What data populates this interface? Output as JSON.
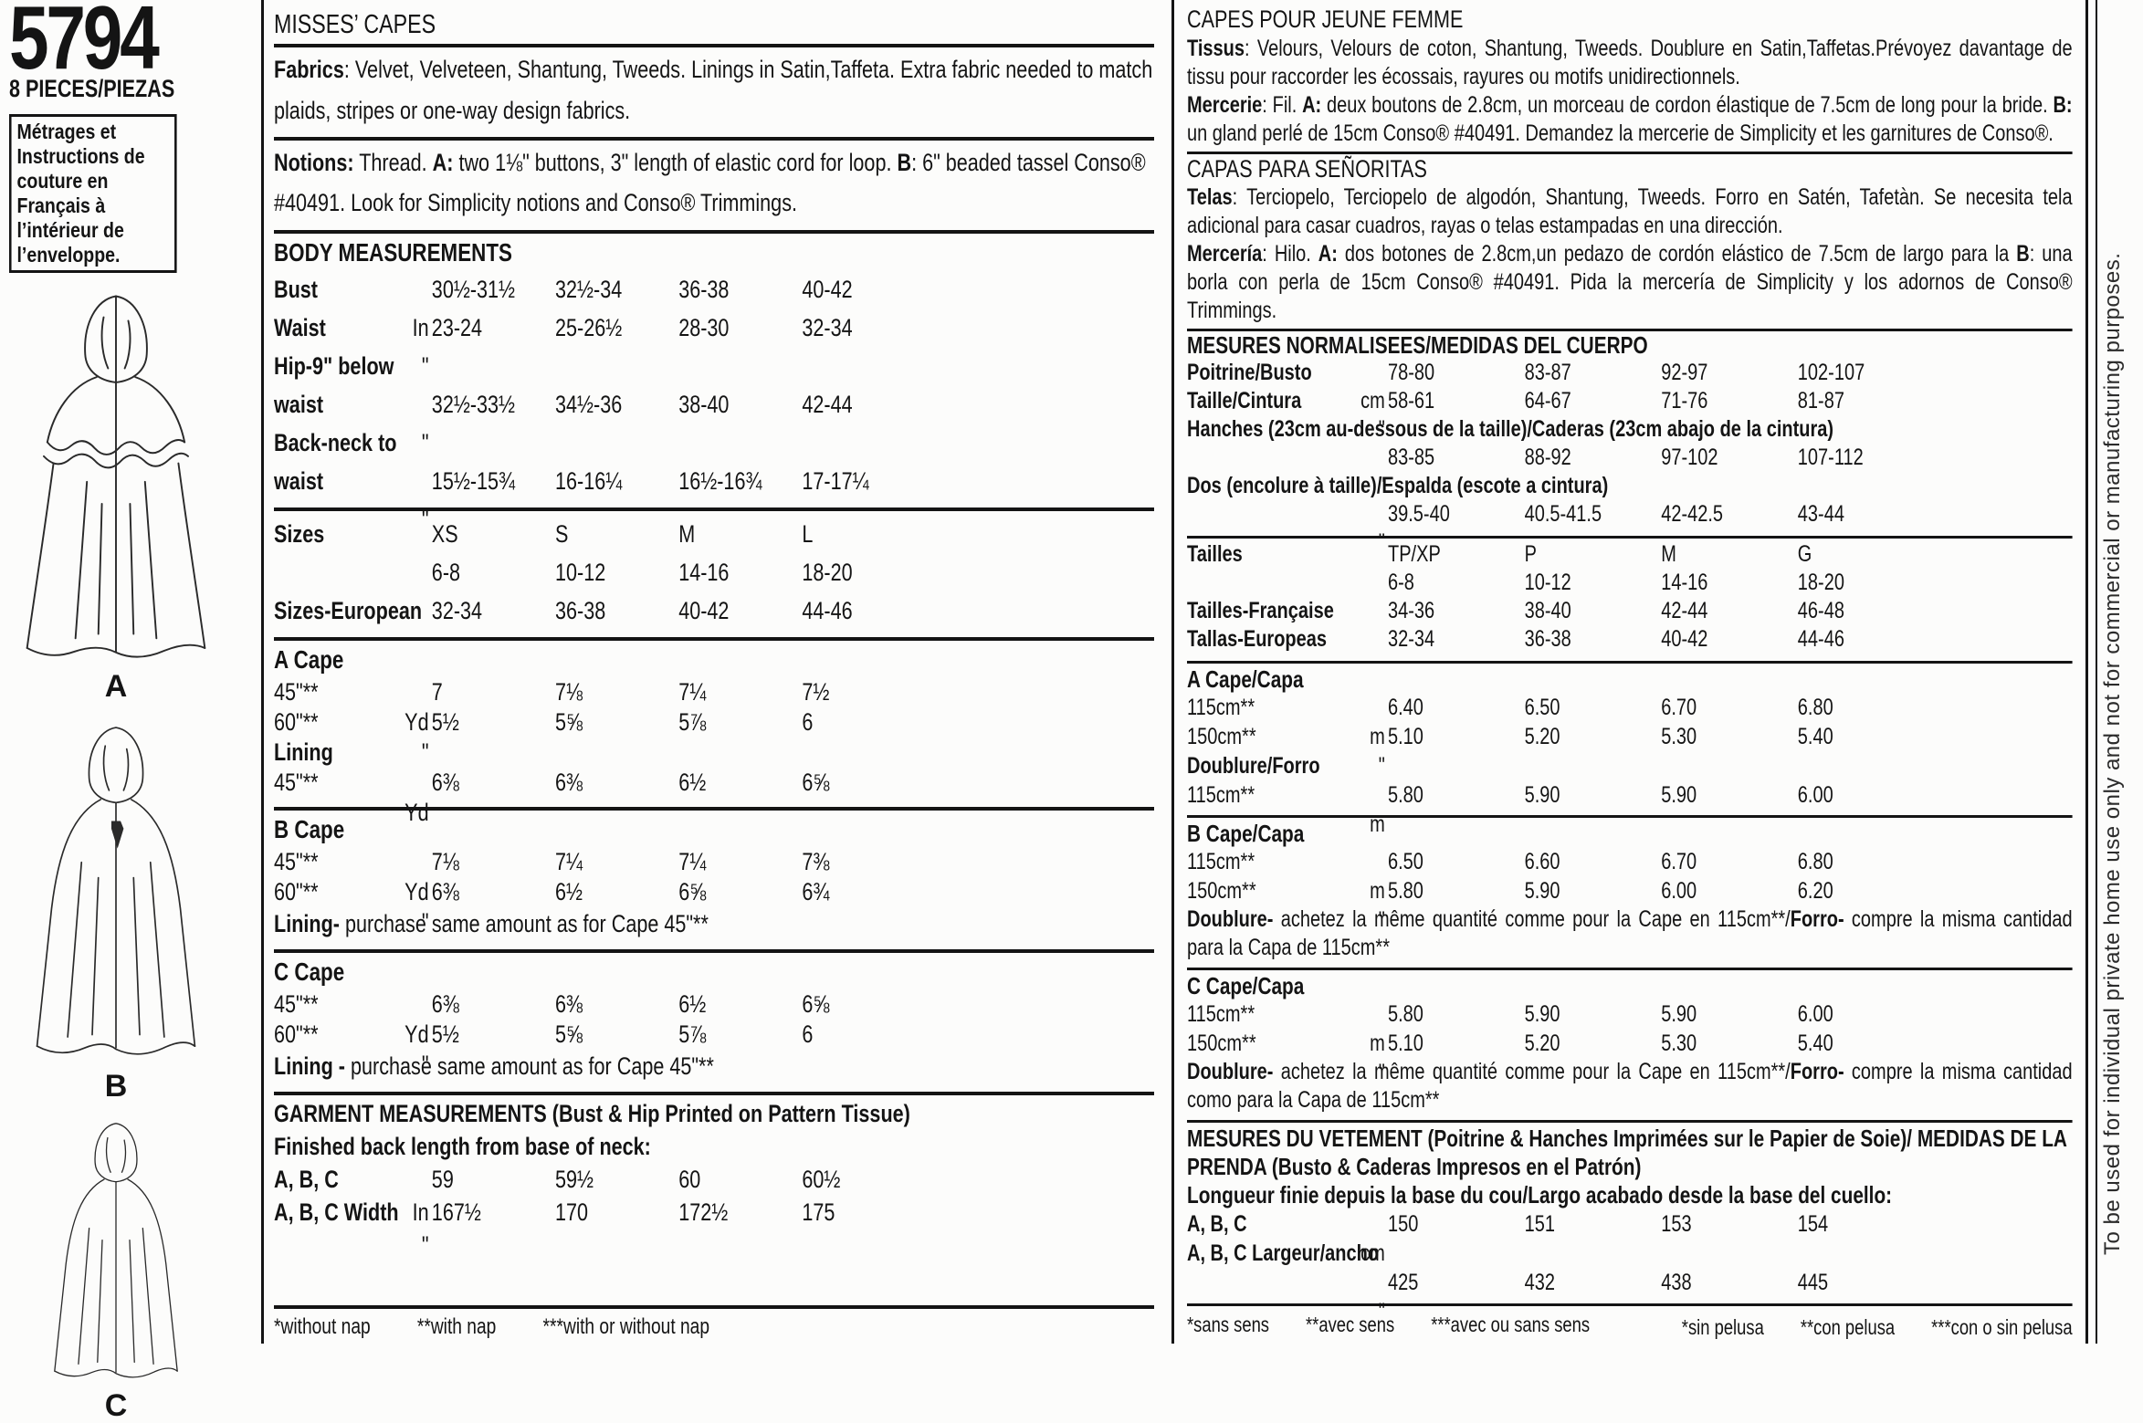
{
  "sidebar": {
    "pattern_number": "5794",
    "pieces": "8 PIECES/PIEZAS",
    "french_note": "Métrages et Instructions de couture en Français à l’intérieur de l’enveloppe.",
    "views": [
      "A",
      "B",
      "C"
    ]
  },
  "english": {
    "title": "MISSES’ CAPES",
    "fabrics": [
      {
        "b": "Fabrics"
      },
      {
        "t": ": Velvet, Velveteen, Shantung, Tweeds. Linings in Satin,Taffeta. Extra fabric needed to match plaids, stripes or one-way design fabrics."
      }
    ],
    "notions": [
      {
        "b": "Notions:"
      },
      {
        "t": " Thread. "
      },
      {
        "b": "A:"
      },
      {
        "t": " two 1⅛\" buttons, 3\" length of elastic cord for loop. "
      },
      {
        "b": "B"
      },
      {
        "t": ": 6\" beaded tassel Conso® #40491. Look for Simplicity notions and Conso® Trimmings."
      }
    ],
    "body_measurements": {
      "title": "BODY MEASUREMENTS",
      "rows": [
        {
          "label": "Bust",
          "bold": true,
          "values": [
            "30½-31½",
            "32½-34",
            "36-38",
            "40-42"
          ],
          "unit": "In"
        },
        {
          "label": "Waist",
          "bold": true,
          "values": [
            "23-24",
            "25-26½",
            "28-30",
            "32-34"
          ],
          "unit": "\""
        },
        {
          "label": "Hip-9\" below waist",
          "bold": true,
          "values": [
            "",
            "",
            "",
            ""
          ],
          "unit": ""
        },
        {
          "label": "",
          "values": [
            "32½-33½",
            "34½-36",
            "38-40",
            "42-44"
          ],
          "unit": "\""
        },
        {
          "label": "Back-neck to waist",
          "bold": true,
          "values": [
            "",
            "",
            "",
            ""
          ],
          "unit": ""
        },
        {
          "label": "",
          "values": [
            "15½-15¾",
            "16-16¼",
            "16½-16¾",
            "17-17¼"
          ],
          "unit": "\""
        }
      ]
    },
    "sizes": {
      "rows": [
        {
          "label": "Sizes",
          "bold": true,
          "values": [
            "XS",
            "S",
            "M",
            "L"
          ],
          "unit": ""
        },
        {
          "label": "",
          "values": [
            "6-8",
            "10-12",
            "14-16",
            "18-20"
          ],
          "unit": ""
        },
        {
          "label": "Sizes-European",
          "bold": true,
          "values": [
            "32-34",
            "36-38",
            "40-42",
            "44-46"
          ],
          "unit": ""
        }
      ]
    },
    "cape_a": {
      "title": "A Cape",
      "rows": [
        {
          "label": "45\"**",
          "values": [
            "7",
            "7⅛",
            "7¼",
            "7½"
          ],
          "unit": "Yd"
        },
        {
          "label": "60\"**",
          "values": [
            "5½",
            "5⅝",
            "5⅞",
            "6"
          ],
          "unit": "\""
        },
        {
          "label": "Lining",
          "bold": true,
          "values": [
            "",
            "",
            "",
            ""
          ],
          "unit": ""
        },
        {
          "label": "45\"**",
          "values": [
            "6⅜",
            "6⅜",
            "6½",
            "6⅝"
          ],
          "unit": "Yd"
        }
      ]
    },
    "cape_b": {
      "title": "B Cape",
      "rows": [
        {
          "label": "45\"**",
          "values": [
            "7⅛",
            "7¼",
            "7¼",
            "7⅜"
          ],
          "unit": "Yd"
        },
        {
          "label": "60\"**",
          "values": [
            "6⅜",
            "6½",
            "6⅝",
            "6¾"
          ],
          "unit": "\""
        },
        {
          "note": [
            {
              "b": "Lining-"
            },
            {
              "t": " purchase same amount as for Cape 45\"**"
            }
          ]
        }
      ]
    },
    "cape_c": {
      "title": "C Cape",
      "rows": [
        {
          "label": "45\"**",
          "values": [
            "6⅜",
            "6⅜",
            "6½",
            "6⅝"
          ],
          "unit": "Yd"
        },
        {
          "label": "60\"**",
          "values": [
            "5½",
            "5⅝",
            "5⅞",
            "6"
          ],
          "unit": "\""
        },
        {
          "note": [
            {
              "b": "Lining -"
            },
            {
              "t": " purchase same amount as for Cape 45\"**"
            }
          ]
        }
      ]
    },
    "garment": {
      "title": "GARMENT MEASUREMENTS (Bust & Hip Printed on Pattern Tissue)",
      "subtitle": "Finished back length from base of neck:",
      "rows": [
        {
          "label": "A, B, C",
          "bold": true,
          "values": [
            "59",
            "59½",
            "60",
            "60½"
          ],
          "unit": "In"
        },
        {
          "label": "A, B, C Width",
          "bold": true,
          "values": [
            "167½",
            "170",
            "172½",
            "175"
          ],
          "unit": "\""
        }
      ]
    },
    "footnotes": [
      "*without nap",
      "**with nap",
      "***with or without nap"
    ]
  },
  "french_spanish": {
    "title_fr": "CAPES POUR JEUNE FEMME",
    "tissus": [
      {
        "b": "Tissus"
      },
      {
        "t": ": Velours, Velours de coton, Shantung, Tweeds. Doublure en Satin,Taffetas.Prévoyez davantage de tissu pour raccorder les écossais, rayures ou motifs unidirectionnels."
      }
    ],
    "mercerie": [
      {
        "b": "Mercerie"
      },
      {
        "t": ": Fil. "
      },
      {
        "b": "A:"
      },
      {
        "t": " deux boutons de 2.8cm, un morceau de cordon élastique de 7.5cm de long pour la bride. "
      },
      {
        "b": "B:"
      },
      {
        "t": " un gland perlé de 15cm Conso® #40491. Demandez la mercerie de Simplicity et les garnitures de Conso®."
      }
    ],
    "title_es": "CAPAS PARA SEÑORITAS",
    "telas": [
      {
        "b": "Telas"
      },
      {
        "t": ": Terciopelo, Terciopelo de algodón, Shantung, Tweeds. Forro en Satén, Tafetàn. Se necesita tela adicional para casar cuadros, rayas o telas estampadas en una dirección."
      }
    ],
    "merceria": [
      {
        "b": "Mercería"
      },
      {
        "t": ": Hilo. "
      },
      {
        "b": "A:"
      },
      {
        "t": " dos botones de 2.8cm,un pedazo de cordón elástico de 7.5cm de largo para la "
      },
      {
        "b": "B"
      },
      {
        "t": ": una borla con perla de 15cm Conso® #40491. Pida la mercería de Simplicity y los adornos de Conso® Trimmings."
      }
    ],
    "body_measurements": {
      "title": "MESURES NORMALISEES/MEDIDAS DEL CUERPO",
      "rows": [
        {
          "label": "Poitrine/Busto",
          "bold": true,
          "values": [
            "78-80",
            "83-87",
            "92-97",
            "102-107"
          ],
          "unit": "cm"
        },
        {
          "label": "Taille/Cintura",
          "bold": true,
          "values": [
            "58-61",
            "64-67",
            "71-76",
            "81-87"
          ],
          "unit": "\""
        },
        {
          "span": "Hanches (23cm au-dessous de la taille)/Caderas (23cm abajo de la cintura)"
        },
        {
          "label": "",
          "values": [
            "83-85",
            "88-92",
            "97-102",
            "107-112"
          ],
          "unit": "\""
        },
        {
          "span": "Dos (encolure à taille)/Espalda (escote a cintura)"
        },
        {
          "label": "",
          "values": [
            "39.5-40",
            "40.5-41.5",
            "42-42.5",
            "43-44"
          ],
          "unit": "\""
        }
      ]
    },
    "sizes": {
      "rows": [
        {
          "label": "Tailles",
          "bold": true,
          "values": [
            "TP/XP",
            "P",
            "M",
            "G"
          ],
          "unit": ""
        },
        {
          "label": "",
          "values": [
            "6-8",
            "10-12",
            "14-16",
            "18-20"
          ],
          "unit": ""
        },
        {
          "label": "Tailles-Française",
          "bold": true,
          "values": [
            "34-36",
            "38-40",
            "42-44",
            "46-48"
          ],
          "unit": ""
        },
        {
          "label": "Tallas-Europeas",
          "bold": true,
          "values": [
            "32-34",
            "36-38",
            "40-42",
            "44-46"
          ],
          "unit": ""
        }
      ]
    },
    "cape_a": {
      "title": "A Cape/Capa",
      "rows": [
        {
          "label": "115cm**",
          "values": [
            "6.40",
            "6.50",
            "6.70",
            "6.80"
          ],
          "unit": "m"
        },
        {
          "label": "150cm**",
          "values": [
            "5.10",
            "5.20",
            "5.30",
            "5.40"
          ],
          "unit": "\""
        },
        {
          "label": "Doublure/Forro",
          "bold": true,
          "values": [
            "",
            "",
            "",
            ""
          ],
          "unit": ""
        },
        {
          "label": "115cm**",
          "values": [
            "5.80",
            "5.90",
            "5.90",
            "6.00"
          ],
          "unit": "m"
        }
      ]
    },
    "cape_b": {
      "title": "B Cape/Capa",
      "rows": [
        {
          "label": "115cm**",
          "values": [
            "6.50",
            "6.60",
            "6.70",
            "6.80"
          ],
          "unit": "m"
        },
        {
          "label": "150cm**",
          "values": [
            "5.80",
            "5.90",
            "6.00",
            "6.20"
          ],
          "unit": "\""
        },
        {
          "note": [
            {
              "b": "Doublure-"
            },
            {
              "t": " achetez la même quantité comme pour la Cape en 115cm**/"
            },
            {
              "b": "Forro-"
            },
            {
              "t": " compre la misma cantidad para la Capa de 115cm**"
            }
          ]
        }
      ]
    },
    "cape_c": {
      "title": "C Cape/Capa",
      "rows": [
        {
          "label": "115cm**",
          "values": [
            "5.80",
            "5.90",
            "5.90",
            "6.00"
          ],
          "unit": "m"
        },
        {
          "label": "150cm**",
          "values": [
            "5.10",
            "5.20",
            "5.30",
            "5.40"
          ],
          "unit": "\""
        },
        {
          "note": [
            {
              "b": "Doublure-"
            },
            {
              "t": " achetez la même quantité comme pour la Cape en 115cm**/"
            },
            {
              "b": "Forro-"
            },
            {
              "t": " compre la misma cantidad como para la Capa de 115cm**"
            }
          ]
        }
      ]
    },
    "garment": {
      "title": "MESURES DU VETEMENT (Poitrine & Hanches Imprimées sur le Papier de Soie)/ MEDIDAS DE LA PRENDA (Busto & Caderas Impresos en el Patrón)",
      "subtitle": "Longueur finie depuis la base du cou/Largo acabado desde la base del cuello:",
      "rows": [
        {
          "label": "A, B, C",
          "bold": true,
          "values": [
            "150",
            "151",
            "153",
            "154"
          ],
          "unit": "cm"
        },
        {
          "label": "A, B, C Largeur/ancho",
          "bold": true,
          "values": [
            "",
            "",
            "",
            ""
          ],
          "unit": ""
        },
        {
          "label": "",
          "values": [
            "425",
            "432",
            "438",
            "445"
          ],
          "unit": "\""
        }
      ]
    },
    "footnotes_fr": [
      "*sans sens",
      "**avec sens",
      "***avec ou sans sens"
    ],
    "footnotes_es": [
      "*sin pelusa",
      "**con pelusa",
      "***con o sin pelusa"
    ]
  },
  "edge_note": "To be used for individual private home use only and not for commercial or manufacturing purposes."
}
